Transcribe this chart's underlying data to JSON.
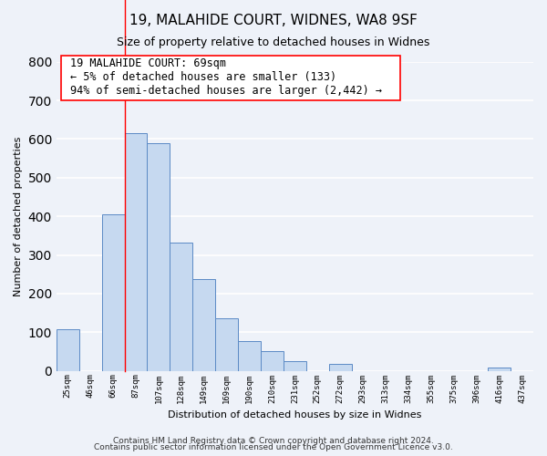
{
  "title": "19, MALAHIDE COURT, WIDNES, WA8 9SF",
  "subtitle": "Size of property relative to detached houses in Widnes",
  "xlabel": "Distribution of detached houses by size in Widnes",
  "ylabel": "Number of detached properties",
  "bar_labels": [
    "25sqm",
    "46sqm",
    "66sqm",
    "87sqm",
    "107sqm",
    "128sqm",
    "149sqm",
    "169sqm",
    "190sqm",
    "210sqm",
    "231sqm",
    "252sqm",
    "272sqm",
    "293sqm",
    "313sqm",
    "334sqm",
    "355sqm",
    "375sqm",
    "396sqm",
    "416sqm",
    "437sqm"
  ],
  "bar_values": [
    107,
    0,
    405,
    615,
    590,
    333,
    237,
    135,
    76,
    50,
    25,
    0,
    17,
    0,
    0,
    0,
    0,
    0,
    0,
    8,
    0
  ],
  "bar_color": "#c6d9f0",
  "bar_edge_color": "#5b8ac5",
  "red_line_index": 3,
  "annotation_text_line1": "19 MALAHIDE COURT: 69sqm",
  "annotation_text_line2": "← 5% of detached houses are smaller (133)",
  "annotation_text_line3": "94% of semi-detached houses are larger (2,442) →",
  "ylim": [
    0,
    800
  ],
  "footnote1": "Contains HM Land Registry data © Crown copyright and database right 2024.",
  "footnote2": "Contains public sector information licensed under the Open Government Licence v3.0.",
  "background_color": "#eef2f9",
  "grid_color": "#ffffff",
  "title_fontsize": 11,
  "subtitle_fontsize": 9,
  "ylabel_fontsize": 8,
  "xlabel_fontsize": 8,
  "tick_fontsize": 6.5,
  "annotation_fontsize": 8.5,
  "footnote_fontsize": 6.5
}
